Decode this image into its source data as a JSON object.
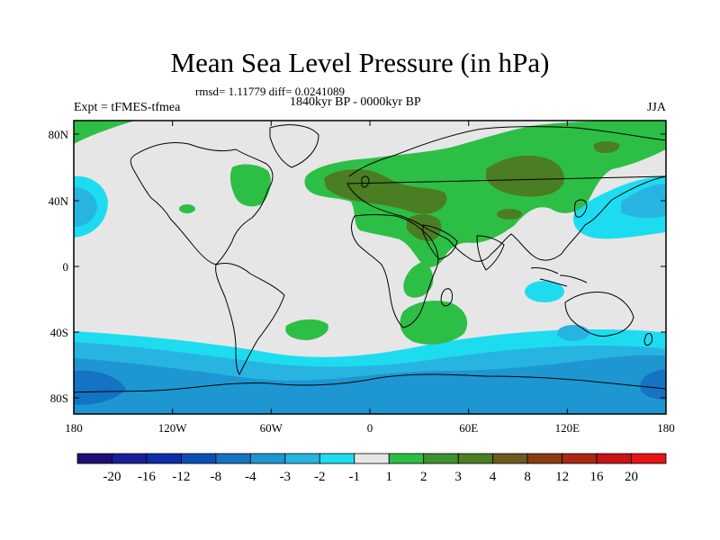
{
  "title": "Mean Sea Level Pressure (in hPa)",
  "stats_line": "rmsd= 1.11779 diff= 0.0241089",
  "period": "1840kyr BP - 0000kyr BP",
  "experiment": "Expt = tFMES-tfmea",
  "season": "JJA",
  "axes": {
    "x_ticks": [
      "180",
      "120W",
      "60W",
      "0",
      "60E",
      "120E",
      "180"
    ],
    "y_ticks": [
      "80N",
      "40N",
      "0",
      "40S",
      "80S"
    ]
  },
  "colorbar": {
    "labels": [
      "-20",
      "-16",
      "-12",
      "-8",
      "-4",
      "-3",
      "-2",
      "-1",
      "1",
      "2",
      "3",
      "4",
      "8",
      "12",
      "16",
      "20"
    ],
    "colors": [
      "#1e0f78",
      "#1a1e96",
      "#0f2fa8",
      "#0a4fb4",
      "#1473c3",
      "#1e96d2",
      "#28b4e1",
      "#1edcf0",
      "#e6e6e6",
      "#2dbe46",
      "#3c9132",
      "#4b7d23",
      "#6e5a1e",
      "#8c3c14",
      "#aa2814",
      "#c81414",
      "#e61414"
    ]
  },
  "palette": {
    "background": "#e6e6e6",
    "pos_light": "#2dbe46",
    "pos_dark": "#4b7d23",
    "neg_light": "#1edcf0",
    "neg_mid": "#28b4e1",
    "neg_dark": "#1e96d2"
  }
}
